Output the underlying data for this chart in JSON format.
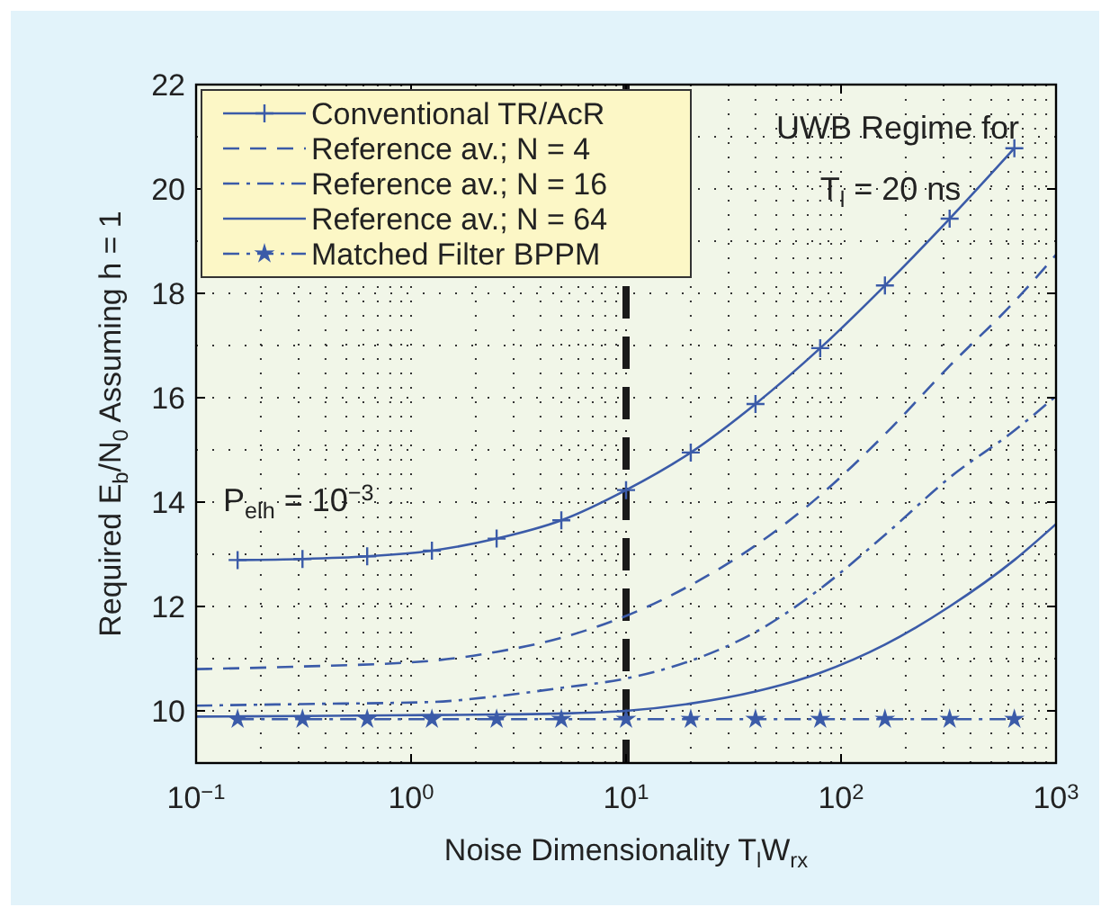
{
  "chart_data": {
    "type": "line",
    "xlabel": "Noise Dimensionality T$_{l}$W$_{rx}$",
    "ylabel": "Required E$_{b}$/N$_{0}$ Assuming h = 1",
    "log": "x",
    "xlim": [
      0.1,
      1000
    ],
    "ylim": [
      9,
      22
    ],
    "xticks": [
      {
        "value": 0.1,
        "label": "10$^{−1}$"
      },
      {
        "value": 1,
        "label": "10$^{0}$"
      },
      {
        "value": 10,
        "label": "10$^{1}$"
      },
      {
        "value": 100,
        "label": "10$^{2}$"
      },
      {
        "value": 1000,
        "label": "10$^{3}$"
      }
    ],
    "yticks": [
      10,
      12,
      14,
      16,
      18,
      20,
      22
    ],
    "grid": true,
    "legend": "top left",
    "series": [
      {
        "name": "Conventional TR/AcR",
        "color": "#3b5ba8",
        "marker": "cross",
        "line_style": "solid",
        "x": [
          0.156,
          0.3125,
          0.625,
          1.25,
          2.5,
          5,
          10,
          20,
          40,
          80,
          160,
          320,
          640
        ],
        "values": [
          12.89,
          12.91,
          12.96,
          13.07,
          13.3,
          13.65,
          14.23,
          14.95,
          15.88,
          16.95,
          18.15,
          19.43,
          20.78
        ]
      },
      {
        "name": "Reference av.; N = 4",
        "color": "#3b5ba8",
        "marker": "none",
        "line_style": "dashed",
        "x": [
          0.1,
          0.3125,
          1.25,
          2.5,
          5,
          10,
          20,
          40,
          80,
          160,
          320,
          640,
          1000
        ],
        "values": [
          10.8,
          10.85,
          10.96,
          11.13,
          11.4,
          11.82,
          12.41,
          13.17,
          14.13,
          15.3,
          16.61,
          17.84,
          18.74
        ]
      },
      {
        "name": "Reference av.; N = 16",
        "color": "#3b5ba8",
        "marker": "none",
        "line_style": "dashdot",
        "x": [
          0.1,
          0.3125,
          1.25,
          2.5,
          5,
          10,
          20,
          40,
          80,
          160,
          320,
          640,
          1000
        ],
        "values": [
          10.1,
          10.13,
          10.17,
          10.28,
          10.44,
          10.62,
          10.96,
          11.51,
          12.34,
          13.37,
          14.47,
          15.37,
          16.03
        ]
      },
      {
        "name": "Reference av.; N = 64",
        "color": "#3b5ba8",
        "marker": "none",
        "line_style": "solid",
        "x": [
          0.1,
          0.3125,
          1.25,
          2.5,
          5,
          10,
          20,
          40,
          80,
          160,
          320,
          640,
          1000
        ],
        "values": [
          9.89,
          9.9,
          9.92,
          9.93,
          9.95,
          10.0,
          10.14,
          10.37,
          10.73,
          11.27,
          12.0,
          12.89,
          13.58
        ]
      },
      {
        "name": "Matched Filter BPPM",
        "color": "#3b5ba8",
        "marker": "star",
        "line_style": "dashdot",
        "x": [
          0.156,
          0.3125,
          0.625,
          1.25,
          2.5,
          5,
          10,
          20,
          40,
          80,
          160,
          320,
          640
        ],
        "values": [
          9.84,
          9.84,
          9.84,
          9.84,
          9.84,
          9.84,
          9.84,
          9.84,
          9.84,
          9.84,
          9.84,
          9.84,
          9.84
        ]
      }
    ],
    "ref_lines": [
      {
        "axis": "x",
        "value": 10,
        "color": "#1a1a1a",
        "line_style": "dashed"
      }
    ],
    "annotations": [
      "UWB Regime for",
      "T$_{l}$ = 20 ns",
      "P$_{elh}$ = 10$^{−3}$"
    ]
  }
}
